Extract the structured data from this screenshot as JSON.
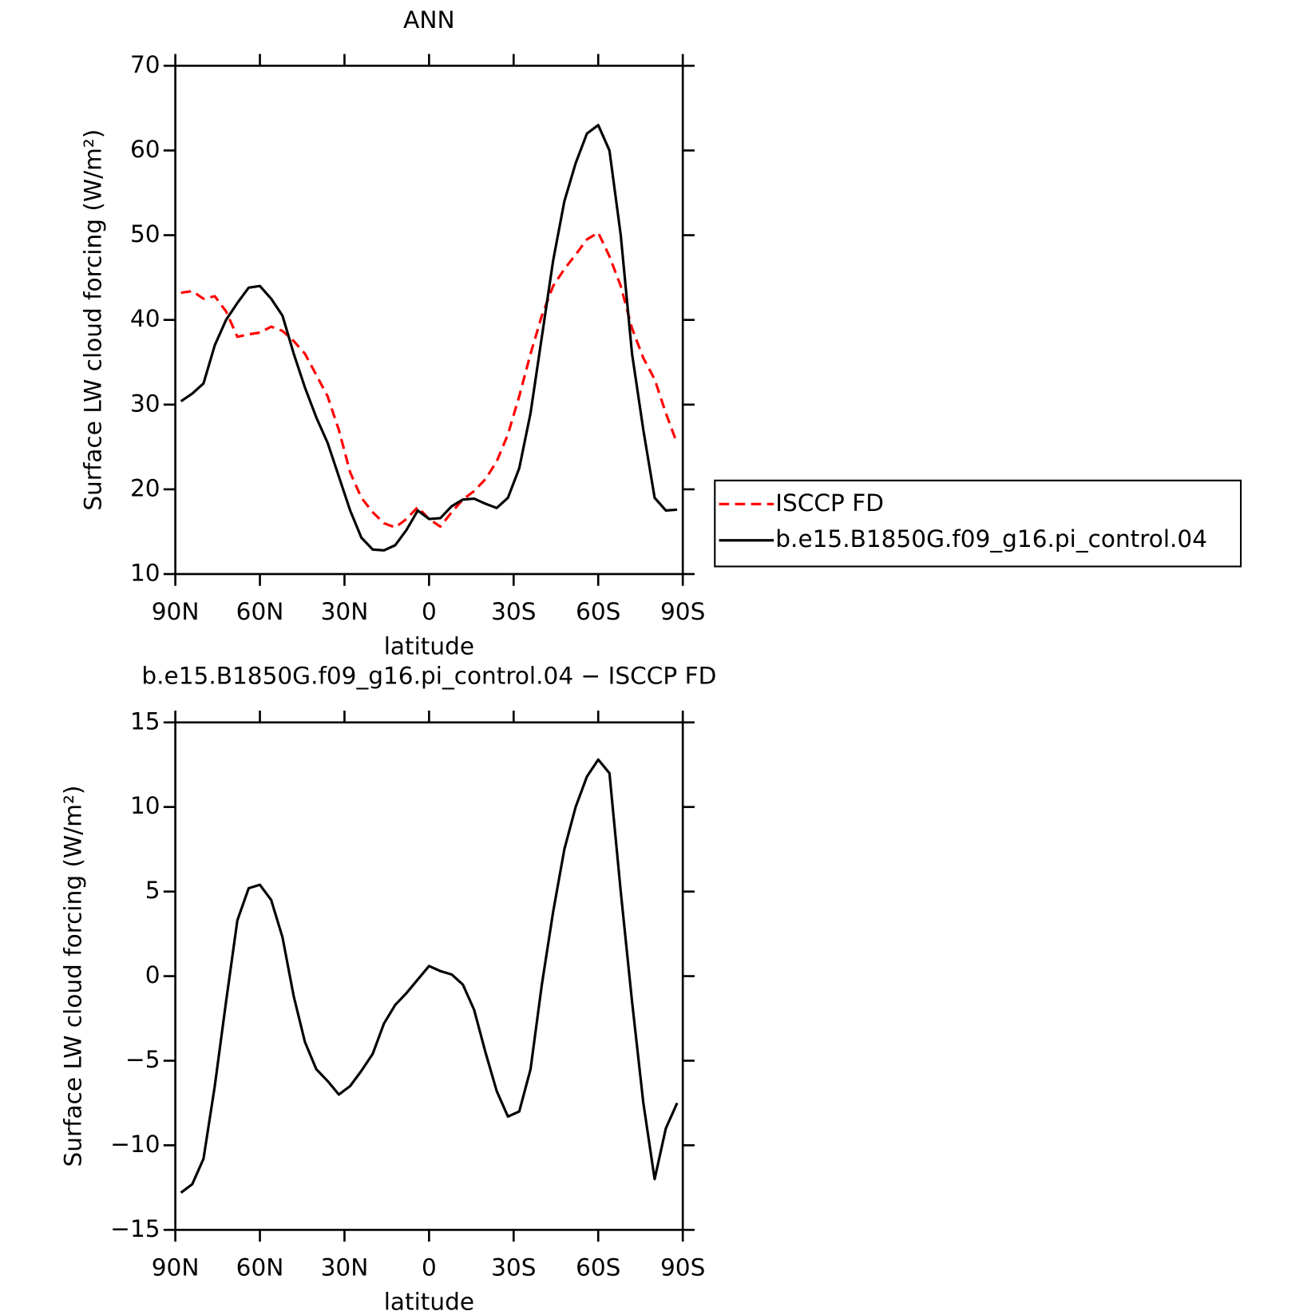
{
  "chart_data": [
    {
      "type": "line",
      "title": "ANN",
      "x_label": "latitude",
      "y_label": "Surface LW cloud forcing (W/m²)",
      "x": [
        88,
        84,
        80,
        76,
        72,
        68,
        64,
        60,
        56,
        52,
        48,
        44,
        40,
        36,
        32,
        28,
        24,
        20,
        16,
        12,
        8,
        4,
        0,
        -4,
        -8,
        -12,
        -16,
        -20,
        -24,
        -28,
        -32,
        -36,
        -40,
        -44,
        -48,
        -52,
        -56,
        -60,
        -64,
        -68,
        -72,
        -76,
        -80,
        -84,
        -88
      ],
      "xlim": [
        90,
        -90
      ],
      "xticks": [
        {
          "value": 90,
          "label": "90N"
        },
        {
          "value": 60,
          "label": "60N"
        },
        {
          "value": 30,
          "label": "30N"
        },
        0,
        {
          "value": -30,
          "label": "30S"
        },
        {
          "value": -60,
          "label": "60S"
        },
        {
          "value": -90,
          "label": "90S"
        }
      ],
      "ylim": [
        10,
        70
      ],
      "yticks": [
        10,
        20,
        30,
        40,
        50,
        60,
        70
      ],
      "legend": "right",
      "series": [
        {
          "name": "ISCCP FD",
          "color": "#ff0000",
          "linestyle": "dashed",
          "values": [
            43.2,
            43.4,
            42.5,
            42.8,
            41,
            38,
            38.3,
            38.5,
            39.2,
            38.7,
            37.5,
            36,
            33.5,
            31,
            27,
            22,
            19,
            17.3,
            16,
            15.5,
            16.5,
            17.9,
            16.5,
            15.6,
            17.3,
            18.8,
            19.8,
            21.2,
            23.3,
            26.5,
            31,
            36,
            40.5,
            44,
            46,
            47.7,
            49.5,
            50.3,
            47.5,
            44,
            39,
            35.5,
            33,
            29,
            25.4
          ]
        },
        {
          "name": "b.e15.B1850G.f09_g16.pi_control.04",
          "color": "#000000",
          "linestyle": "solid",
          "values": [
            30.4,
            31.3,
            32.5,
            37,
            40,
            42,
            43.8,
            44,
            42.5,
            40.5,
            36,
            32,
            28.5,
            25.5,
            21.5,
            17.5,
            14.3,
            12.9,
            12.8,
            13.4,
            15.2,
            17.5,
            16.5,
            16.6,
            18,
            18.8,
            18.9,
            18.3,
            17.8,
            19,
            22.5,
            29,
            38,
            47,
            54,
            58.5,
            62,
            63,
            60,
            50,
            36,
            27,
            19,
            17.5,
            17.6
          ]
        }
      ]
    },
    {
      "type": "line",
      "title": "b.e15.B1850G.f09_g16.pi_control.04 − ISCCP FD",
      "x_label": "latitude",
      "y_label": "Surface LW cloud forcing (W/m²)",
      "x": [
        88,
        84,
        80,
        76,
        72,
        68,
        64,
        60,
        56,
        52,
        48,
        44,
        40,
        36,
        32,
        28,
        24,
        20,
        16,
        12,
        8,
        4,
        0,
        -4,
        -8,
        -12,
        -16,
        -20,
        -24,
        -28,
        -32,
        -36,
        -40,
        -44,
        -48,
        -52,
        -56,
        -60,
        -64,
        -68,
        -72,
        -76,
        -80,
        -84,
        -88
      ],
      "xlim": [
        90,
        -90
      ],
      "xticks": [
        {
          "value": 90,
          "label": "90N"
        },
        {
          "value": 60,
          "label": "60N"
        },
        {
          "value": 30,
          "label": "30N"
        },
        0,
        {
          "value": -30,
          "label": "30S"
        },
        {
          "value": -60,
          "label": "60S"
        },
        {
          "value": -90,
          "label": "90S"
        }
      ],
      "ylim": [
        -15,
        15
      ],
      "yticks": [
        {
          "value": -15,
          "label": "−15"
        },
        {
          "value": -10,
          "label": "−10"
        },
        {
          "value": -5,
          "label": "−5"
        },
        0,
        5,
        10,
        15
      ],
      "series": [
        {
          "color": "#000000",
          "linestyle": "solid",
          "values": [
            -12.8,
            -12.3,
            -10.8,
            -6.5,
            -1.5,
            3.3,
            5.2,
            5.4,
            4.5,
            2.3,
            -1.2,
            -3.9,
            -5.5,
            -6.2,
            -7,
            -6.5,
            -5.6,
            -4.6,
            -2.8,
            -1.7,
            -1,
            -0.2,
            0.6,
            0.3,
            0.1,
            -0.5,
            -2,
            -4.5,
            -6.8,
            -8.3,
            -8,
            -5.5,
            -0.5,
            3.8,
            7.5,
            10,
            11.8,
            12.8,
            12,
            5,
            -1.5,
            -7.5,
            -12,
            -9,
            -7.5
          ]
        }
      ]
    }
  ]
}
